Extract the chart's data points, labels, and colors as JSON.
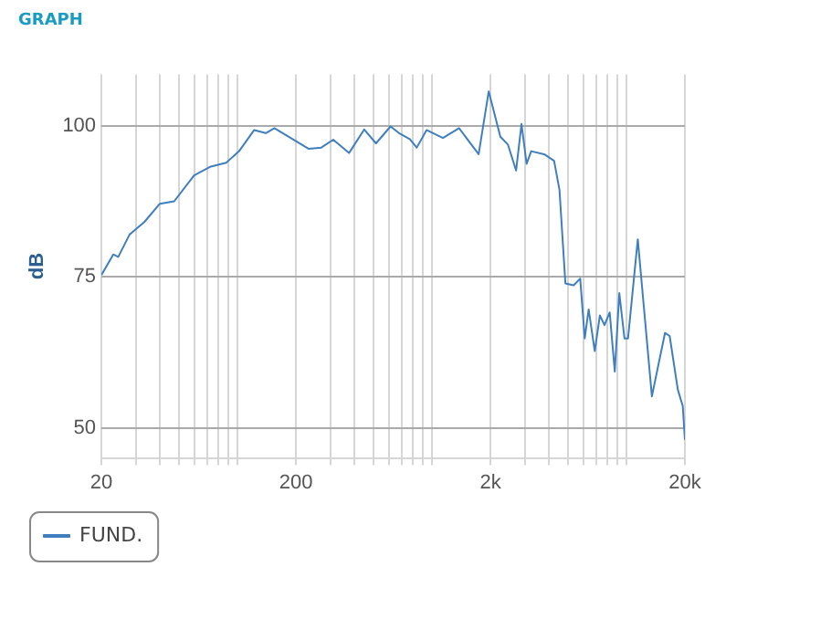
{
  "chart_data": {
    "type": "line",
    "title": "GRAPH",
    "ylabel": "dB",
    "log": "x",
    "grid": true,
    "legend": "bottom",
    "xlim": [
      20,
      20000
    ],
    "ylim": [
      45,
      108.5
    ],
    "yticks": [
      50,
      75,
      100
    ],
    "xticks": [
      20,
      {
        "value": 30,
        "label": null
      },
      {
        "value": 40,
        "label": null
      },
      {
        "value": 50,
        "label": null
      },
      {
        "value": 60,
        "label": null
      },
      {
        "value": 70,
        "label": null
      },
      {
        "value": 80,
        "label": null
      },
      {
        "value": 90,
        "label": null
      },
      {
        "value": 100,
        "label": null
      },
      200,
      {
        "value": 300,
        "label": null
      },
      {
        "value": 400,
        "label": null
      },
      {
        "value": 500,
        "label": null
      },
      {
        "value": 600,
        "label": null
      },
      {
        "value": 700,
        "label": null
      },
      {
        "value": 800,
        "label": null
      },
      {
        "value": 900,
        "label": null
      },
      {
        "value": 1000,
        "label": null
      },
      {
        "value": 2000,
        "label": "2k"
      },
      {
        "value": 3000,
        "label": null
      },
      {
        "value": 4000,
        "label": null
      },
      {
        "value": 5000,
        "label": null
      },
      {
        "value": 6000,
        "label": null
      },
      {
        "value": 7000,
        "label": null
      },
      {
        "value": 8000,
        "label": null
      },
      {
        "value": 9000,
        "label": null
      },
      {
        "value": 10000,
        "label": null
      },
      {
        "value": 20000,
        "label": "20k"
      }
    ],
    "x": [
      20,
      23,
      24.4,
      27.9,
      33.3,
      39.9,
      47.3,
      59.9,
      72.2,
      87.6,
      102,
      122,
      140,
      155,
      183,
      232,
      270,
      311,
      375,
      449,
      516,
      613,
      685,
      770,
      836,
      939,
      1140,
      1380,
      1740,
      1960,
      2250,
      2460,
      2710,
      2890,
      3070,
      3240,
      3780,
      4250,
      4530,
      4860,
      5360,
      5790,
      6110,
      6400,
      6880,
      7310,
      7720,
      8210,
      8720,
      9200,
      9780,
      10200,
      11450,
      13530,
      15800,
      16700,
      18400,
      19500,
      20000
    ],
    "series": [
      {
        "name": "FUND.",
        "color": "#3f7fbf",
        "values": [
          75.3,
          78.7,
          78.3,
          82,
          84.1,
          87.1,
          87.5,
          91.8,
          93.2,
          93.9,
          95.8,
          99.3,
          98.8,
          99.6,
          98.2,
          96.2,
          96.4,
          97.7,
          95.5,
          99.4,
          97.1,
          99.9,
          98.7,
          97.8,
          96.4,
          99.3,
          98,
          99.6,
          95.3,
          105.7,
          98.2,
          96.9,
          92.6,
          100.3,
          93.7,
          95.8,
          95.3,
          94.2,
          89.4,
          73.9,
          73.6,
          74.7,
          64.8,
          69.6,
          62.7,
          68.6,
          67,
          69.1,
          59.3,
          72.3,
          64.8,
          64.8,
          81.2,
          55.2,
          65.7,
          65.2,
          56.3,
          53.6,
          48
        ]
      }
    ]
  }
}
